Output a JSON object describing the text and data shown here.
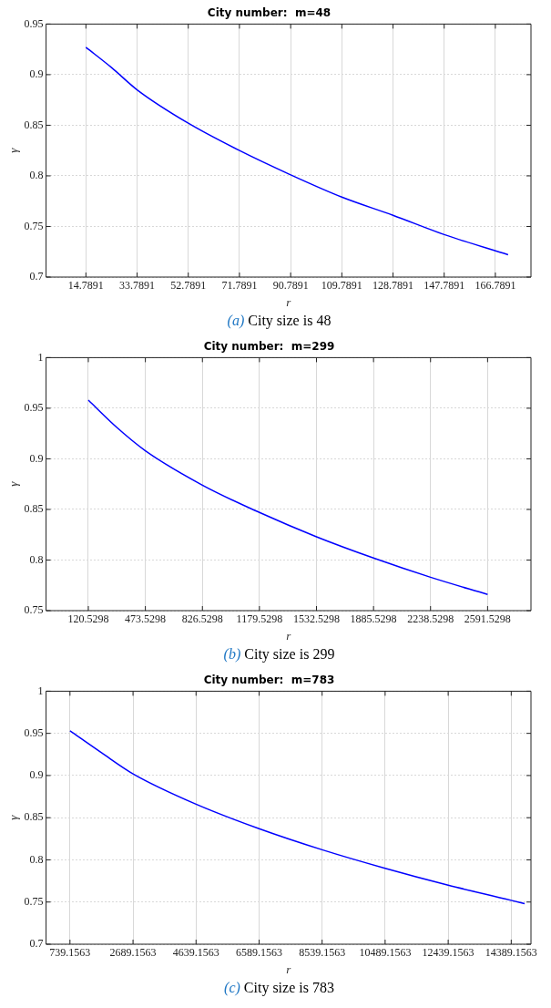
{
  "chart_data": [
    {
      "type": "line",
      "title": "City number:  m=48",
      "xlabel": "r",
      "ylabel": "γ",
      "annotations": [
        "(a) City size is 48"
      ],
      "xlim": [
        0,
        180
      ],
      "xticks": [
        14.7891,
        33.7891,
        52.7891,
        71.7891,
        90.7891,
        109.7891,
        128.7891,
        147.7891,
        166.7891
      ],
      "ylim": [
        0.7,
        0.95
      ],
      "yticks": [
        0.7,
        0.75,
        0.8,
        0.85,
        0.9,
        0.95
      ],
      "grid": true,
      "marker": "none",
      "line_style": "solid",
      "series": [
        {
          "color": "#0000ff",
          "x": [
            14.7891,
            24.3,
            33.7891,
            52.7891,
            71.7891,
            90.7891,
            109.7891,
            128.7891,
            147.7891,
            171.5
          ],
          "values": [
            0.927,
            0.907,
            0.885,
            0.852,
            0.825,
            0.801,
            0.779,
            0.761,
            0.742,
            0.722
          ]
        }
      ]
    },
    {
      "type": "line",
      "title": "City number:  m=299",
      "xlabel": "r",
      "ylabel": "γ",
      "annotations": [
        "(b) City size is 299"
      ],
      "xlim": [
        -141,
        2860
      ],
      "xticks": [
        120.5298,
        473.5298,
        826.5298,
        1179.5298,
        1532.5298,
        1885.5298,
        2238.5298,
        2591.5298
      ],
      "ylim": [
        0.75,
        1
      ],
      "yticks": [
        0.75,
        0.8,
        0.85,
        0.9,
        0.95,
        1
      ],
      "grid": true,
      "marker": "none",
      "line_style": "solid",
      "series": [
        {
          "color": "#0000ff",
          "x": [
            120.5298,
            297,
            473.5298,
            826.5298,
            1179.5298,
            1532.5298,
            1885.5298,
            2238.5298,
            2591.5298
          ],
          "values": [
            0.958,
            0.931,
            0.908,
            0.874,
            0.847,
            0.823,
            0.802,
            0.783,
            0.766
          ]
        }
      ]
    },
    {
      "type": "line",
      "title": "City number:  m=783",
      "xlabel": "r",
      "ylabel": "γ",
      "annotations": [
        "(c) City size is 783"
      ],
      "xlim": [
        0,
        15000
      ],
      "xticks": [
        739.1563,
        2689.1563,
        4639.1563,
        6589.1563,
        8539.1563,
        10489.1563,
        12439.1563,
        14389.1563
      ],
      "ylim": [
        0.7,
        1
      ],
      "yticks": [
        0.7,
        0.75,
        0.8,
        0.85,
        0.9,
        0.95,
        1
      ],
      "grid": true,
      "marker": "none",
      "line_style": "solid",
      "series": [
        {
          "color": "#0000ff",
          "x": [
            739.1563,
            1714,
            2689.1563,
            4639.1563,
            6589.1563,
            8539.1563,
            10489.1563,
            12439.1563,
            14389.1563,
            14803
          ],
          "values": [
            0.953,
            0.927,
            0.902,
            0.866,
            0.837,
            0.812,
            0.79,
            0.77,
            0.752,
            0.748
          ]
        }
      ]
    }
  ]
}
